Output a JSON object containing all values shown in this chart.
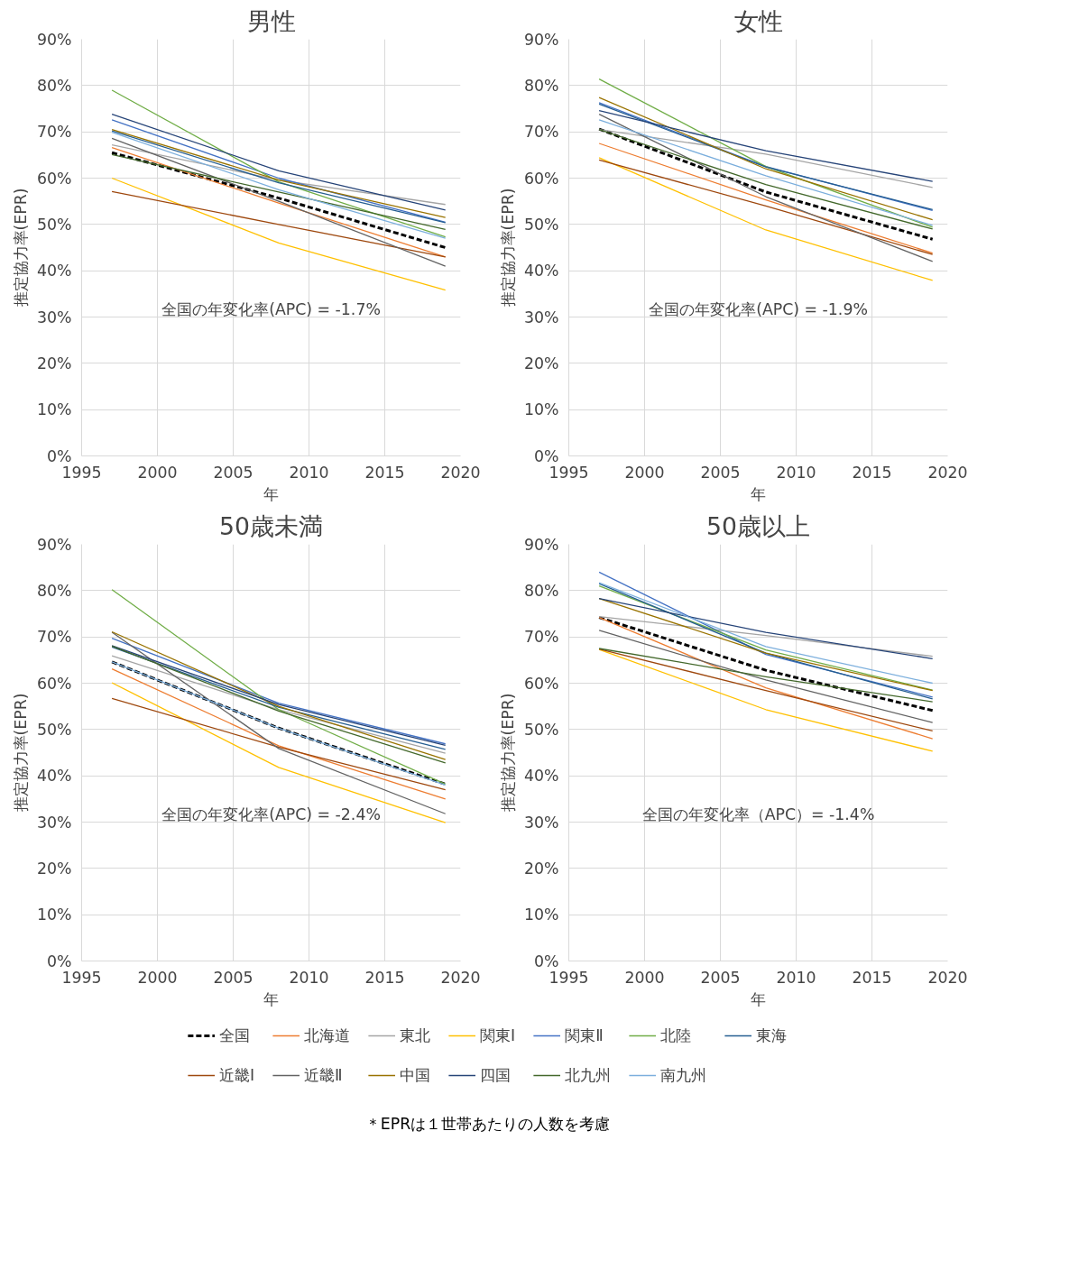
{
  "chart_data": [
    {
      "type": "line",
      "title": "男性",
      "xlabel": "年",
      "ylabel": "推定協力率(EPR)",
      "annotations": [
        "全国の年変化率(APC) = -1.7%"
      ],
      "x": [
        1997,
        2008,
        2019
      ],
      "xlim": [
        1995,
        2020
      ],
      "xticks": [
        1995,
        2000,
        2005,
        2010,
        2015,
        2020
      ],
      "ylim": [
        0,
        90
      ],
      "yticks": [
        {
          "value": 0,
          "label": "0%"
        },
        {
          "value": 10,
          "label": "10%"
        },
        {
          "value": 20,
          "label": "20%"
        },
        {
          "value": 30,
          "label": "30%"
        },
        {
          "value": 40,
          "label": "40%"
        },
        {
          "value": 50,
          "label": "50%"
        },
        {
          "value": 60,
          "label": "60%"
        },
        {
          "value": 70,
          "label": "70%"
        },
        {
          "value": 80,
          "label": "80%"
        },
        {
          "value": 90,
          "label": "90%"
        }
      ],
      "grid": true,
      "legend": "bottom",
      "series": [
        {
          "name": "全国",
          "color": "#000000",
          "line_style": "dashed",
          "values": [
            65.5,
            55.7,
            45
          ]
        },
        {
          "name": "北海道",
          "color": "#ed7d31",
          "values": [
            66.6,
            54.6,
            43
          ]
        },
        {
          "name": "東北",
          "color": "#a5a5a5",
          "values": [
            67.2,
            59.6,
            54.3
          ]
        },
        {
          "name": "関東Ⅰ",
          "color": "#ffc000",
          "values": [
            60,
            46,
            35.8
          ]
        },
        {
          "name": "関東Ⅱ",
          "color": "#4472c4",
          "values": [
            72.6,
            60,
            50.5
          ]
        },
        {
          "name": "北陸",
          "color": "#70ad47",
          "values": [
            79,
            59.2,
            47.3
          ]
        },
        {
          "name": "東海",
          "color": "#255e91",
          "values": [
            70.2,
            59,
            50.4
          ]
        },
        {
          "name": "近畿Ⅰ",
          "color": "#9e480e",
          "values": [
            57.1,
            50,
            43
          ]
        },
        {
          "name": "近畿Ⅱ",
          "color": "#636363",
          "values": [
            68.6,
            55,
            41
          ]
        },
        {
          "name": "中国",
          "color": "#997300",
          "values": [
            70.5,
            59.6,
            51.5
          ]
        },
        {
          "name": "四国",
          "color": "#264478",
          "values": [
            73.8,
            61.6,
            53.1
          ]
        },
        {
          "name": "北九州",
          "color": "#43682b",
          "values": [
            65.1,
            57,
            48.9
          ]
        },
        {
          "name": "南九州",
          "color": "#7cafdd",
          "values": [
            69.9,
            57.5,
            47
          ]
        }
      ]
    },
    {
      "type": "line",
      "title": "女性",
      "xlabel": "年",
      "ylabel": "推定協力率(EPR)",
      "annotations": [
        "全国の年変化率(APC) = -1.9%"
      ],
      "x": [
        1997,
        2008,
        2019
      ],
      "xlim": [
        1995,
        2020
      ],
      "xticks": [
        1995,
        2000,
        2005,
        2010,
        2015,
        2020
      ],
      "ylim": [
        0,
        90
      ],
      "yticks": [
        {
          "value": 0,
          "label": "0%"
        },
        {
          "value": 10,
          "label": "10%"
        },
        {
          "value": 20,
          "label": "20%"
        },
        {
          "value": 30,
          "label": "30%"
        },
        {
          "value": 40,
          "label": "40%"
        },
        {
          "value": 50,
          "label": "50%"
        },
        {
          "value": 60,
          "label": "60%"
        },
        {
          "value": 70,
          "label": "70%"
        },
        {
          "value": 80,
          "label": "80%"
        },
        {
          "value": 90,
          "label": "90%"
        }
      ],
      "grid": true,
      "series": [
        {
          "color": "#000000",
          "line_style": "dashed",
          "values": [
            70.6,
            57,
            46.8
          ]
        },
        {
          "color": "#ed7d31",
          "values": [
            67.5,
            55.3,
            43.8
          ]
        },
        {
          "color": "#a5a5a5",
          "values": [
            70.5,
            65.2,
            58
          ]
        },
        {
          "color": "#ffc000",
          "values": [
            64.4,
            48.8,
            37.9
          ]
        },
        {
          "color": "#4472c4",
          "values": [
            76.3,
            62.5,
            53
          ]
        },
        {
          "color": "#70ad47",
          "values": [
            81.4,
            62.5,
            49.4
          ]
        },
        {
          "color": "#255e91",
          "values": [
            76,
            62.4,
            53.2
          ]
        },
        {
          "color": "#9e480e",
          "values": [
            63.9,
            54,
            43.5
          ]
        },
        {
          "color": "#636363",
          "values": [
            73.8,
            56,
            42
          ]
        },
        {
          "color": "#997300",
          "values": [
            77.4,
            62,
            51
          ]
        },
        {
          "color": "#264478",
          "values": [
            74.6,
            65.9,
            59.3
          ]
        },
        {
          "color": "#43682b",
          "values": [
            70.5,
            58.6,
            49
          ]
        },
        {
          "color": "#7cafdd",
          "values": [
            72.6,
            60.5,
            49.8
          ]
        }
      ]
    },
    {
      "type": "line",
      "title": "50歳未満",
      "xlabel": "年",
      "ylabel": "推定協力率(EPR)",
      "annotations": [
        "全国の年変化率(APC) = -2.4%"
      ],
      "x": [
        1997,
        2008,
        2019
      ],
      "xlim": [
        1995,
        2020
      ],
      "xticks": [
        1995,
        2000,
        2005,
        2010,
        2015,
        2020
      ],
      "ylim": [
        0,
        90
      ],
      "yticks": [
        {
          "value": 0,
          "label": "0%"
        },
        {
          "value": 10,
          "label": "10%"
        },
        {
          "value": 20,
          "label": "20%"
        },
        {
          "value": 30,
          "label": "30%"
        },
        {
          "value": 40,
          "label": "40%"
        },
        {
          "value": 50,
          "label": "50%"
        },
        {
          "value": 60,
          "label": "60%"
        },
        {
          "value": 70,
          "label": "70%"
        },
        {
          "value": 80,
          "label": "80%"
        },
        {
          "value": 90,
          "label": "90%"
        }
      ],
      "grid": true,
      "series": [
        {
          "color": "#000000",
          "line_style": "dashed",
          "values": [
            64.6,
            50.3,
            38.2
          ]
        },
        {
          "color": "#ed7d31",
          "values": [
            63.1,
            46.5,
            35
          ]
        },
        {
          "color": "#a5a5a5",
          "values": [
            65.9,
            54.3,
            44.9
          ]
        },
        {
          "color": "#ffc000",
          "values": [
            60.1,
            41.8,
            29.9
          ]
        },
        {
          "color": "#4472c4",
          "values": [
            69.7,
            55.7,
            46.9
          ]
        },
        {
          "color": "#70ad47",
          "values": [
            80.2,
            54.3,
            38.2
          ]
        },
        {
          "color": "#255e91",
          "values": [
            67.8,
            54.8,
            45.7
          ]
        },
        {
          "color": "#9e480e",
          "values": [
            56.7,
            46.2,
            37
          ]
        },
        {
          "color": "#636363",
          "values": [
            71,
            45.9,
            31.8
          ]
        },
        {
          "color": "#997300",
          "values": [
            71.1,
            55,
            43.5
          ]
        },
        {
          "color": "#264478",
          "values": [
            68.1,
            55.4,
            46.6
          ]
        },
        {
          "color": "#43682b",
          "values": [
            68,
            54,
            42.8
          ]
        },
        {
          "color": "#7cafdd",
          "values": [
            64.6,
            50.3,
            38
          ]
        }
      ]
    },
    {
      "type": "line",
      "title": "50歳以上",
      "xlabel": "年",
      "ylabel": "推定協力率(EPR)",
      "annotations": [
        "全国の年変化率（APC）= -1.4%",
        "＊EPRは１世帯あたりの人数を考慮"
      ],
      "x": [
        1997,
        2008,
        2019
      ],
      "xlim": [
        1995,
        2020
      ],
      "xticks": [
        1995,
        2000,
        2005,
        2010,
        2015,
        2020
      ],
      "ylim": [
        0,
        90
      ],
      "yticks": [
        {
          "value": 0,
          "label": "0%"
        },
        {
          "value": 10,
          "label": "10%"
        },
        {
          "value": 20,
          "label": "20%"
        },
        {
          "value": 30,
          "label": "30%"
        },
        {
          "value": 40,
          "label": "40%"
        },
        {
          "value": 50,
          "label": "50%"
        },
        {
          "value": 60,
          "label": "60%"
        },
        {
          "value": 70,
          "label": "70%"
        },
        {
          "value": 80,
          "label": "80%"
        },
        {
          "value": 90,
          "label": "90%"
        }
      ],
      "grid": true,
      "series": [
        {
          "color": "#000000",
          "line_style": "dashed",
          "values": [
            74.2,
            62.8,
            54.1
          ]
        },
        {
          "color": "#ed7d31",
          "values": [
            74.2,
            59,
            48
          ]
        },
        {
          "color": "#a5a5a5",
          "values": [
            74.4,
            70.3,
            65.8
          ]
        },
        {
          "color": "#ffc000",
          "values": [
            67.3,
            54.3,
            45.3
          ]
        },
        {
          "color": "#4472c4",
          "values": [
            84,
            66.2,
            57
          ]
        },
        {
          "color": "#70ad47",
          "values": [
            81,
            67.2,
            58.5
          ]
        },
        {
          "color": "#255e91",
          "values": [
            81.5,
            66.5,
            56.6
          ]
        },
        {
          "color": "#9e480e",
          "values": [
            67.4,
            58.4,
            49.7
          ]
        },
        {
          "color": "#636363",
          "values": [
            71.4,
            60.7,
            51.5
          ]
        },
        {
          "color": "#997300",
          "values": [
            78.3,
            66.5,
            58.4
          ]
        },
        {
          "color": "#264478",
          "values": [
            78.3,
            71,
            65.3
          ]
        },
        {
          "color": "#43682b",
          "values": [
            67.5,
            61.4,
            56
          ]
        },
        {
          "color": "#7cafdd",
          "values": [
            81.7,
            67.9,
            60
          ]
        }
      ]
    }
  ]
}
